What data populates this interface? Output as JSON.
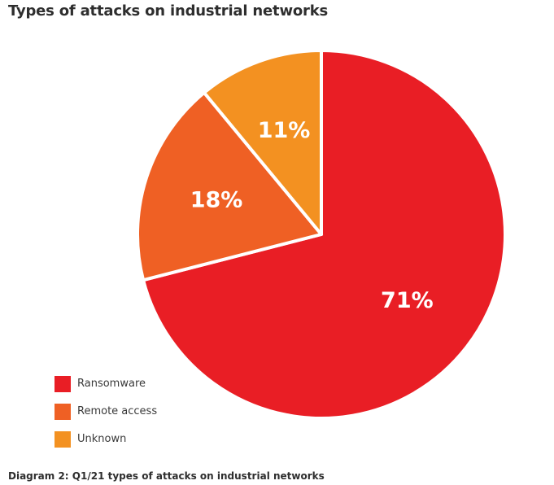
{
  "title": "Types of attacks on industrial networks",
  "caption": "Diagram 2: Q1/21 types of attacks on industrial networks",
  "chart_data": {
    "type": "pie",
    "title": "Types of attacks on industrial networks",
    "legend_position": "bottom-left",
    "slices": [
      {
        "label": "Ransomware",
        "value": 71,
        "display": "71%",
        "color": "#e91e25"
      },
      {
        "label": "Remote access",
        "value": 18,
        "display": "18%",
        "color": "#ef6024"
      },
      {
        "label": "Unknown",
        "value": 11,
        "display": "11%",
        "color": "#f39121"
      }
    ]
  }
}
